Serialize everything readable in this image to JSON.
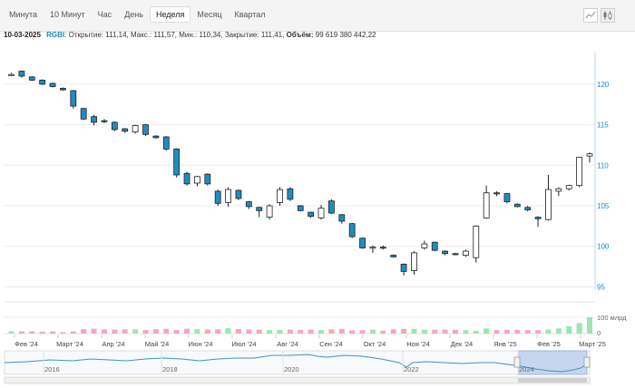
{
  "tabs": [
    {
      "label": "Минута",
      "active": false
    },
    {
      "label": "10 Минут",
      "active": false
    },
    {
      "label": "Час",
      "active": false
    },
    {
      "label": "День",
      "active": false
    },
    {
      "label": "Неделя",
      "active": true
    },
    {
      "label": "Месяц",
      "active": false
    },
    {
      "label": "Квартал",
      "active": false
    }
  ],
  "tools": {
    "line_icon": "line-chart-icon",
    "candle_icon": "candlestick-chart-icon"
  },
  "info": {
    "date": "10-03-2025",
    "ticker": "RGBI",
    "open_label": "Открытие:",
    "open": "111,14",
    "high_label": "Макс.:",
    "high": "111,57",
    "low_label": "Мин.:",
    "low": "110,34",
    "close_label": "Закрытие:",
    "close": "111,41",
    "volume_label": "Объём:",
    "volume": "99 619 380 442,22"
  },
  "colors": {
    "down": "#1f8dc1",
    "up": "#ffffff",
    "vol_up": "#9be6b4",
    "vol_down": "#f4a6bd",
    "axis_text": "#1a8ac9",
    "navigator": "#4a90c2"
  },
  "chart_data": {
    "type": "candlestick",
    "y_ticks": [
      95,
      100,
      105,
      110,
      115,
      120
    ],
    "ylim": [
      94.6,
      123.9
    ],
    "volume_label": "100 млрд",
    "volume_zero": "0",
    "volume_unit": "billion RUB",
    "months": [
      "Фев '24",
      "Март '24",
      "Апр '24",
      "Май '24",
      "Июн '24",
      "Июл '24",
      "Авг '24",
      "Сен '24",
      "Окт '24",
      "Ноя '24",
      "Дек '24",
      "Янв '25",
      "Фев '25",
      "Март '25"
    ],
    "navigator_years": [
      "2016",
      "2018",
      "2020",
      "2022",
      "2024"
    ],
    "candles": [
      {
        "o": 121.2,
        "h": 121.4,
        "l": 121.1,
        "c": 121.2,
        "v": 14
      },
      {
        "o": 121.6,
        "h": 121.7,
        "l": 120.8,
        "c": 121.0,
        "v": 14
      },
      {
        "o": 120.9,
        "h": 121.0,
        "l": 120.4,
        "c": 120.5,
        "v": 14
      },
      {
        "o": 120.5,
        "h": 120.6,
        "l": 119.9,
        "c": 120.0,
        "v": 12
      },
      {
        "o": 120.1,
        "h": 120.2,
        "l": 119.6,
        "c": 119.7,
        "v": 13
      },
      {
        "o": 119.5,
        "h": 119.6,
        "l": 119.2,
        "c": 119.3,
        "v": 9
      },
      {
        "o": 119.2,
        "h": 119.3,
        "l": 117.0,
        "c": 117.3,
        "v": 13
      },
      {
        "o": 117.0,
        "h": 117.1,
        "l": 115.6,
        "c": 115.7,
        "v": 27
      },
      {
        "o": 116.0,
        "h": 116.2,
        "l": 114.9,
        "c": 115.3,
        "v": 30
      },
      {
        "o": 115.5,
        "h": 115.7,
        "l": 115.2,
        "c": 115.4,
        "v": 25
      },
      {
        "o": 115.3,
        "h": 115.4,
        "l": 114.2,
        "c": 114.4,
        "v": 25
      },
      {
        "o": 114.5,
        "h": 114.6,
        "l": 114.0,
        "c": 114.2,
        "v": 26
      },
      {
        "o": 114.1,
        "h": 115.0,
        "l": 113.9,
        "c": 114.9,
        "v": 26
      },
      {
        "o": 115.0,
        "h": 115.1,
        "l": 113.6,
        "c": 113.8,
        "v": 22
      },
      {
        "o": 113.6,
        "h": 113.7,
        "l": 113.3,
        "c": 113.4,
        "v": 27
      },
      {
        "o": 113.5,
        "h": 113.6,
        "l": 111.8,
        "c": 112.0,
        "v": 29
      },
      {
        "o": 112.0,
        "h": 112.1,
        "l": 108.5,
        "c": 108.8,
        "v": 22
      },
      {
        "o": 109.0,
        "h": 109.2,
        "l": 107.5,
        "c": 107.7,
        "v": 30
      },
      {
        "o": 107.8,
        "h": 108.7,
        "l": 107.4,
        "c": 108.6,
        "v": 27
      },
      {
        "o": 108.9,
        "h": 109.0,
        "l": 107.5,
        "c": 107.7,
        "v": 25
      },
      {
        "o": 106.8,
        "h": 107.0,
        "l": 105.0,
        "c": 105.3,
        "v": 27
      },
      {
        "o": 105.4,
        "h": 107.3,
        "l": 104.9,
        "c": 107.0,
        "v": 33
      },
      {
        "o": 106.9,
        "h": 107.0,
        "l": 105.7,
        "c": 105.9,
        "v": 28
      },
      {
        "o": 105.5,
        "h": 105.6,
        "l": 104.6,
        "c": 104.9,
        "v": 25
      },
      {
        "o": 104.8,
        "h": 104.9,
        "l": 103.6,
        "c": 104.4,
        "v": 24
      },
      {
        "o": 103.6,
        "h": 105.2,
        "l": 103.3,
        "c": 105.0,
        "v": 22
      },
      {
        "o": 105.4,
        "h": 107.3,
        "l": 105.0,
        "c": 107.0,
        "v": 23
      },
      {
        "o": 107.1,
        "h": 107.3,
        "l": 105.6,
        "c": 105.8,
        "v": 25
      },
      {
        "o": 105.0,
        "h": 105.1,
        "l": 104.3,
        "c": 104.4,
        "v": 23
      },
      {
        "o": 104.2,
        "h": 104.3,
        "l": 103.5,
        "c": 103.7,
        "v": 24
      },
      {
        "o": 103.5,
        "h": 105.1,
        "l": 103.3,
        "c": 104.7,
        "v": 22
      },
      {
        "o": 105.6,
        "h": 105.8,
        "l": 104.0,
        "c": 104.1,
        "v": 26
      },
      {
        "o": 103.9,
        "h": 104.0,
        "l": 102.8,
        "c": 103.1,
        "v": 29
      },
      {
        "o": 102.8,
        "h": 102.9,
        "l": 101.0,
        "c": 101.2,
        "v": 20
      },
      {
        "o": 101.0,
        "h": 101.1,
        "l": 99.7,
        "c": 99.8,
        "v": 21
      },
      {
        "o": 99.8,
        "h": 100.1,
        "l": 99.2,
        "c": 99.9,
        "v": 24
      },
      {
        "o": 99.9,
        "h": 100.1,
        "l": 99.6,
        "c": 99.8,
        "v": 18
      },
      {
        "o": 98.9,
        "h": 99.0,
        "l": 98.6,
        "c": 98.7,
        "v": 26
      },
      {
        "o": 97.8,
        "h": 97.9,
        "l": 96.4,
        "c": 96.9,
        "v": 29
      },
      {
        "o": 97.0,
        "h": 99.4,
        "l": 96.5,
        "c": 99.2,
        "v": 29
      },
      {
        "o": 99.8,
        "h": 100.7,
        "l": 99.6,
        "c": 100.3,
        "v": 24
      },
      {
        "o": 100.5,
        "h": 100.6,
        "l": 99.4,
        "c": 99.5,
        "v": 24
      },
      {
        "o": 99.4,
        "h": 99.5,
        "l": 98.9,
        "c": 99.1,
        "v": 25
      },
      {
        "o": 99.1,
        "h": 99.2,
        "l": 98.9,
        "c": 99.0,
        "v": 23
      },
      {
        "o": 98.9,
        "h": 99.6,
        "l": 98.7,
        "c": 99.4,
        "v": 21
      },
      {
        "o": 98.6,
        "h": 102.6,
        "l": 98.0,
        "c": 102.5,
        "v": 17
      },
      {
        "o": 103.5,
        "h": 107.5,
        "l": 103.4,
        "c": 106.6,
        "v": 32
      },
      {
        "o": 106.6,
        "h": 106.8,
        "l": 106.2,
        "c": 106.5,
        "v": 22
      },
      {
        "o": 106.5,
        "h": 106.6,
        "l": 105.3,
        "c": 105.5,
        "v": 23
      },
      {
        "o": 105.2,
        "h": 105.3,
        "l": 104.8,
        "c": 104.9,
        "v": 23
      },
      {
        "o": 104.8,
        "h": 105.0,
        "l": 104.3,
        "c": 104.5,
        "v": 21
      },
      {
        "o": 103.6,
        "h": 103.7,
        "l": 102.4,
        "c": 103.4,
        "v": 21
      },
      {
        "o": 103.3,
        "h": 108.8,
        "l": 103.2,
        "c": 107.0,
        "v": 25
      },
      {
        "o": 106.8,
        "h": 107.3,
        "l": 106.2,
        "c": 107.1,
        "v": 32
      },
      {
        "o": 107.1,
        "h": 107.6,
        "l": 106.9,
        "c": 107.5,
        "v": 45
      },
      {
        "o": 107.5,
        "h": 111.0,
        "l": 107.3,
        "c": 111.0,
        "v": 65
      },
      {
        "o": 111.14,
        "h": 111.57,
        "l": 110.34,
        "c": 111.41,
        "v": 100
      }
    ]
  }
}
